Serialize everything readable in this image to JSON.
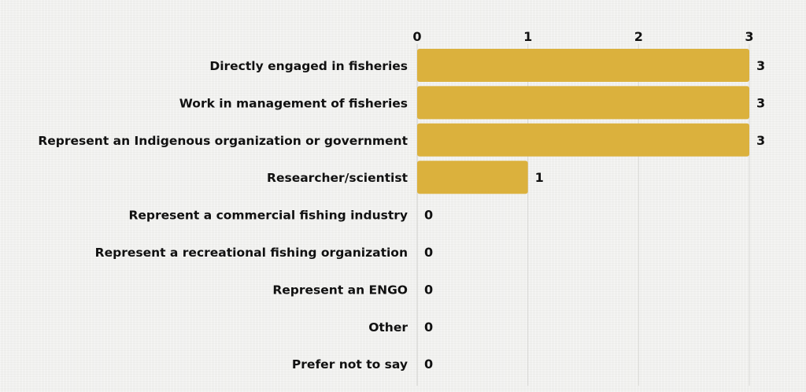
{
  "chart_data": {
    "type": "bar",
    "orientation": "horizontal",
    "title": "",
    "xlabel": "",
    "ylabel": "",
    "xlim": [
      0,
      3
    ],
    "x_ticks": [
      0,
      1,
      2,
      3
    ],
    "tick_position": "top",
    "grid": true,
    "legend": "none",
    "bar_color": "#dbb13d",
    "categories": [
      "Directly engaged in fisheries",
      "Work in management of fisheries",
      "Represent an Indigenous organization or government",
      "Researcher/scientist",
      "Represent a commercial fishing industry",
      "Represent a recreational fishing organization",
      "Represent an ENGO",
      "Other",
      "Prefer not to say"
    ],
    "values": [
      3,
      3,
      3,
      1,
      0,
      0,
      0,
      0,
      0
    ]
  }
}
